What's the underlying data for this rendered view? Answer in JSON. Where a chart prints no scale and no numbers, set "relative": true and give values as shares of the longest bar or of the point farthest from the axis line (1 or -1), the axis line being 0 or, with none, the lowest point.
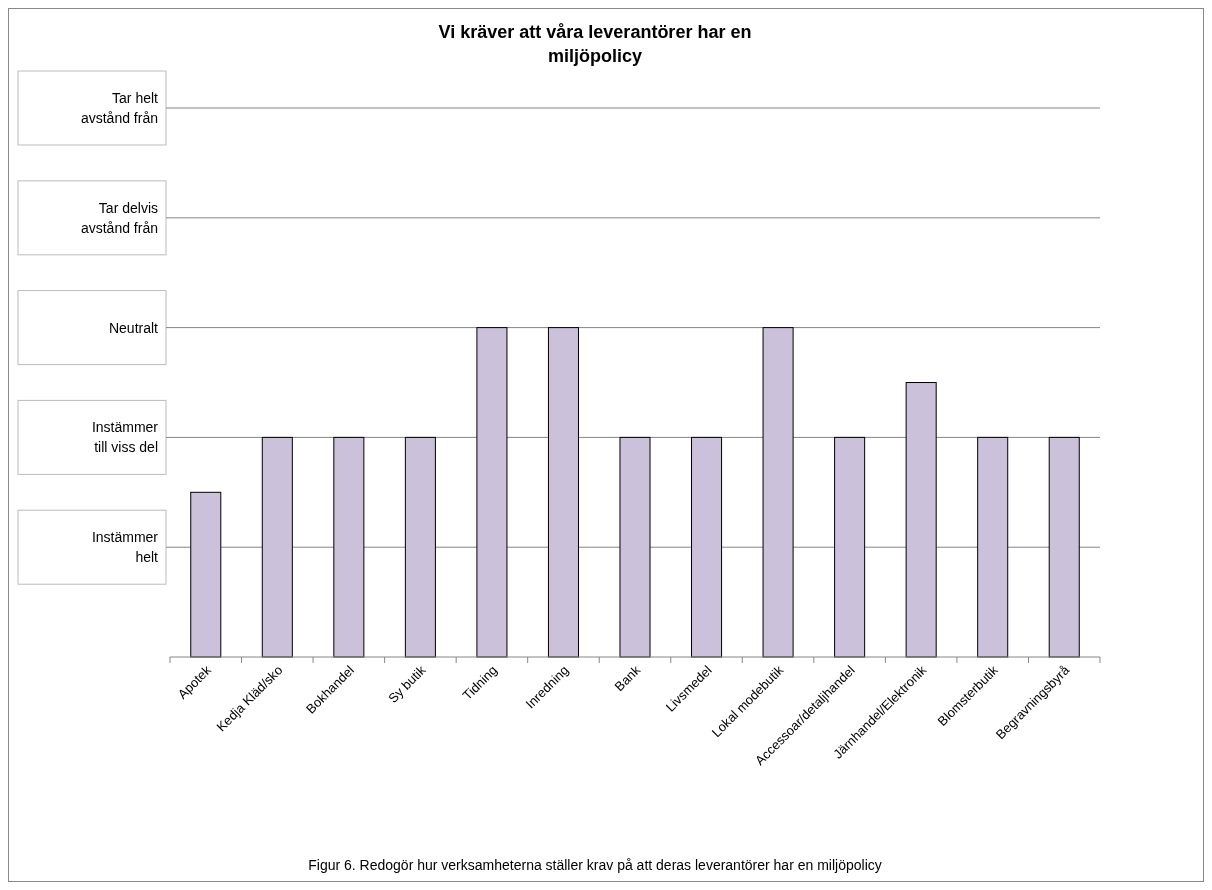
{
  "chart_data": {
    "type": "bar",
    "title": "Vi kräver att våra leverantörer har en miljöpolicy",
    "categories": [
      "Apotek",
      "Kedja Kläd/sko",
      "Bokhandel",
      "Sy butik",
      "Tidning",
      "Inredning",
      "Bank",
      "Livsmedel",
      "Lokal modebutik",
      "Accessoar/detaljhandel",
      "Järnhandel/Elektronik",
      "Blomsterbutik",
      "Begravningsbyrå"
    ],
    "relative": true,
    "values": [
      0.5,
      0.6667,
      0.6667,
      0.6667,
      1,
      1,
      0.6667,
      0.6667,
      1,
      0.6667,
      0.8333,
      0.6667,
      0.6667
    ],
    "color": "#ccc1da",
    "ref_lines": [
      {
        "axis": "y",
        "value": 0.3333,
        "label": "Instämmer helt",
        "color": "#868686"
      },
      {
        "axis": "y",
        "value": 0.6667,
        "label": "Instämmer till viss del",
        "color": "#868686"
      },
      {
        "axis": "y",
        "value": 1,
        "label": "Neutralt",
        "color": "#868686"
      },
      {
        "axis": "y",
        "value": 1.3333,
        "label": "Tar delvis avstånd från",
        "color": "#868686"
      },
      {
        "axis": "y",
        "value": 1.6667,
        "label": "Tar helt avstånd från",
        "color": "#868686"
      }
    ],
    "annotations": [
      "Figur 6. Redogör hur verksamheterna ställer krav på att deras leverantörer har en miljöpolicy"
    ]
  }
}
